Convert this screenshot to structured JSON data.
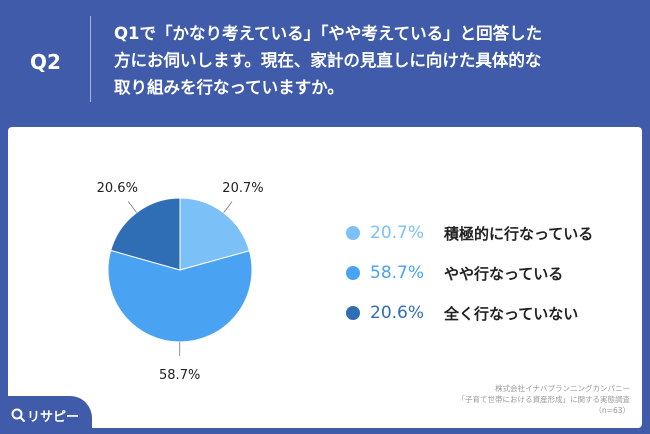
{
  "header": {
    "q_label": "Q2",
    "question_lines": [
      "Q1で「かなり考えている」「やや考えている」と回答した",
      "方にお伺いします。現在、家計の見直しに向けた具体的な",
      "取り組みを行なっていますか。"
    ]
  },
  "chart_data": {
    "type": "pie",
    "slices": [
      {
        "label": "積極的に行なっている",
        "value": 20.7,
        "display": "20.7%",
        "color": "#7cc0f8"
      },
      {
        "label": "やや行なっている",
        "value": 58.7,
        "display": "58.7%",
        "color": "#4aa3f2"
      },
      {
        "label": "全く行なっていない",
        "value": 20.6,
        "display": "20.6%",
        "color": "#2f6eb5"
      }
    ],
    "start_angle_deg": 0,
    "direction": "clockwise",
    "legend_position": "right"
  },
  "source": {
    "lines": [
      "株式会社イナバプランニングカンパニー",
      "「子育て世帯における資産形成」に関する実態調査",
      "（n=63）"
    ]
  },
  "brand": {
    "logo_text": "リサピー"
  }
}
